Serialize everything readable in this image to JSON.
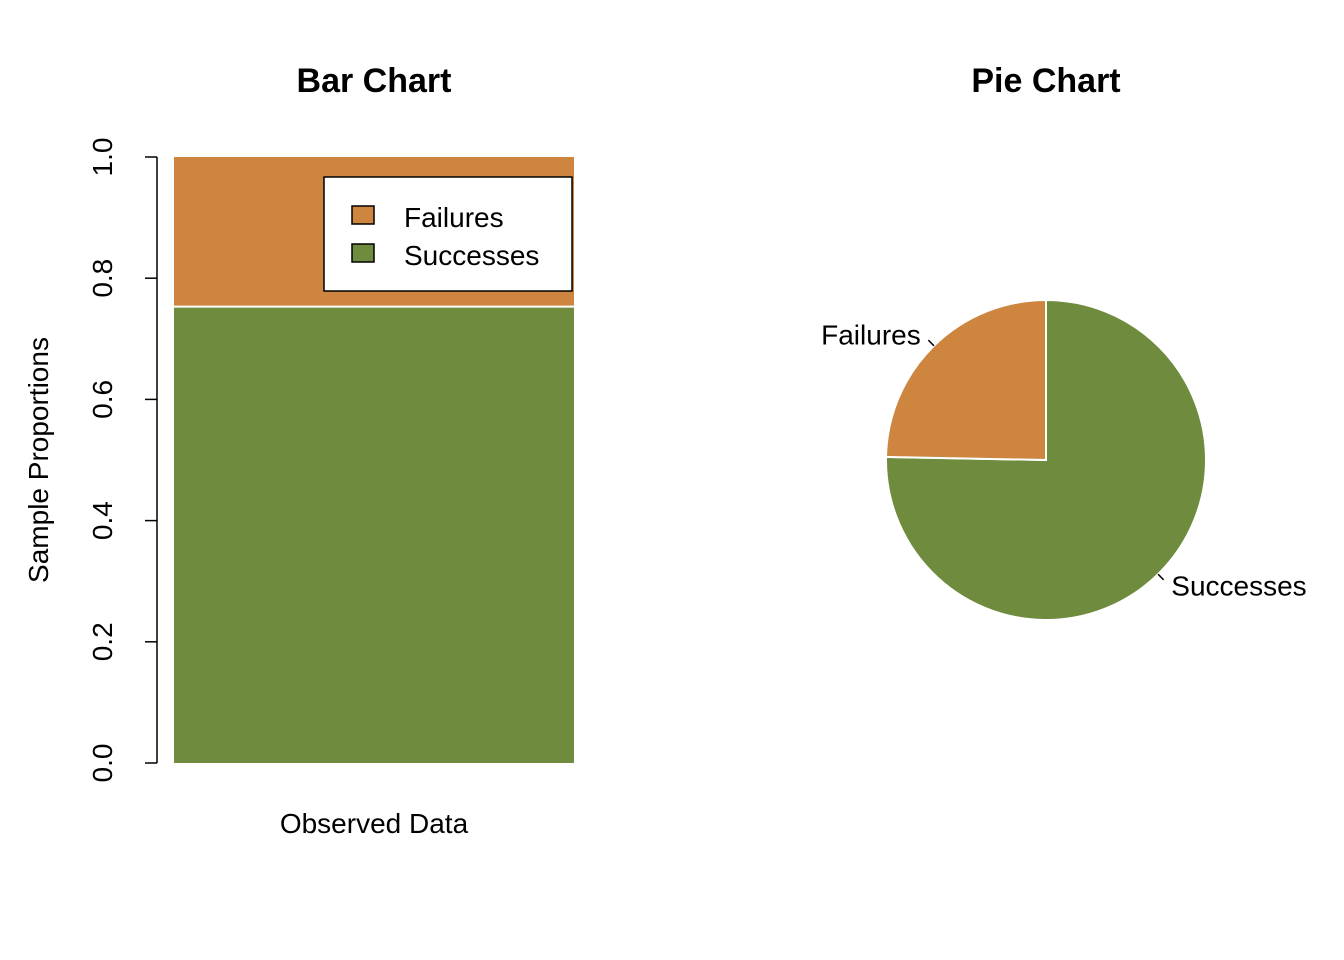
{
  "colors": {
    "successes": "#6F8B3D",
    "failures": "#CD853F",
    "background": "#ffffff",
    "ink": "#000000"
  },
  "chart_data": [
    {
      "type": "bar",
      "subtype": "stacked-proportion",
      "title": "Bar Chart",
      "xlabel": "Observed Data",
      "ylabel": "Sample Proportions",
      "ylim": [
        0,
        1
      ],
      "yticks": [
        "0.0",
        "0.2",
        "0.4",
        "0.6",
        "0.8",
        "1.0"
      ],
      "series": [
        {
          "name": "Successes",
          "value": 0.753
        },
        {
          "name": "Failures",
          "value": 0.247
        }
      ],
      "legend": {
        "position": "top-right",
        "entries": [
          "Failures",
          "Successes"
        ]
      },
      "grid": false
    },
    {
      "type": "pie",
      "title": "Pie Chart",
      "slices": [
        {
          "label": "Failures",
          "value": 0.247
        },
        {
          "label": "Successes",
          "value": 0.753
        }
      ]
    }
  ]
}
